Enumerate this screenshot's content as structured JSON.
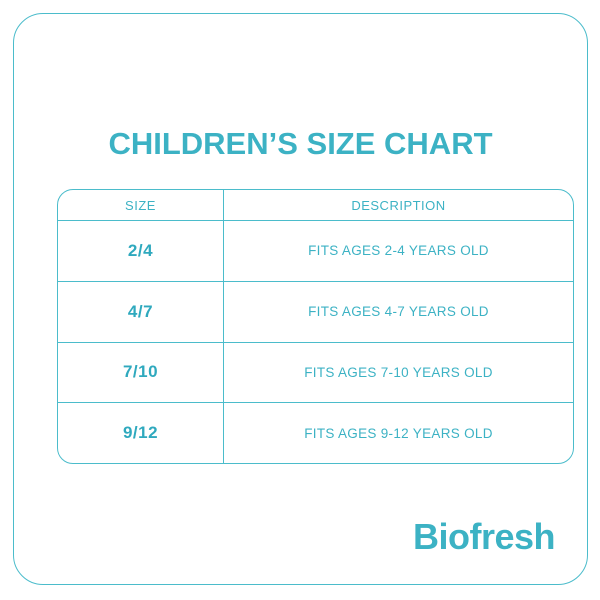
{
  "page": {
    "title": "CHILDREN’S SIZE CHART"
  },
  "size_chart": {
    "headers": {
      "size": "SIZE",
      "description": "DESCRIPTION"
    },
    "rows": [
      {
        "size": "2/4",
        "description": "FITS AGES 2-4 YEARS OLD"
      },
      {
        "size": "4/7",
        "description": "FITS AGES 4-7 YEARS OLD"
      },
      {
        "size": "7/10",
        "description": "FITS AGES 7-10 YEARS OLD"
      },
      {
        "size": "9/12",
        "description": "FITS AGES 9-12 YEARS OLD"
      }
    ]
  },
  "brand": {
    "name": "Biofresh"
  },
  "colors": {
    "accent": "#3cb2c4",
    "line": "#4bbccb",
    "bold": "#2fa9be"
  }
}
